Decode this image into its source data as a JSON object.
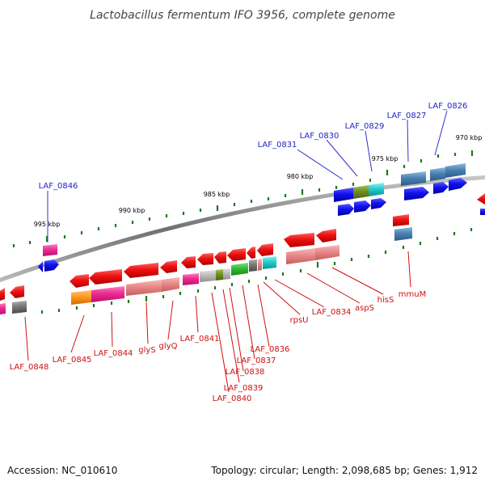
{
  "title": "Lactobacillus fermentum IFO 3956, complete genome",
  "footer": {
    "accession": "Accession: NC_010610",
    "summary": "Topology: circular; Length: 2,098,685 bp; Genes: 1,912"
  },
  "scale_labels": [
    "995 kbp",
    "990 kbp",
    "985 kbp",
    "980 kbp",
    "975 kbp",
    "970 kbp"
  ],
  "top_gene_labels": [
    "LAF_0846",
    "LAF_0831",
    "LAF_0830",
    "LAF_0829",
    "LAF_0827",
    "LAF_0826"
  ],
  "bottom_gene_labels": [
    "LAF_0848",
    "LAF_0845",
    "LAF_0844",
    "glyS",
    "glyQ",
    "LAF_0841",
    "LAF_0840",
    "LAF_0839",
    "LAF_0838",
    "LAF_0837",
    "LAF_0836",
    "rpsU",
    "LAF_0834",
    "aspS",
    "hisS",
    "mmuM"
  ],
  "colors": {
    "backbone": "#808080",
    "tick": "#1e7a1e",
    "gene_red": "#ee1111",
    "gene_blue": "#1111ee",
    "gene_steel": "#4a82b4",
    "gene_pink": "#ee3399",
    "gene_salmon": "#e88888",
    "gene_orange": "#ff9922",
    "gene_grey": "#777777",
    "gene_lightgrey": "#bbbbbb",
    "gene_olive": "#6f8f22",
    "gene_green": "#33bb33",
    "gene_cyan": "#22cccc",
    "label_top": "#2323c8",
    "label_bottom": "#cc1111"
  }
}
